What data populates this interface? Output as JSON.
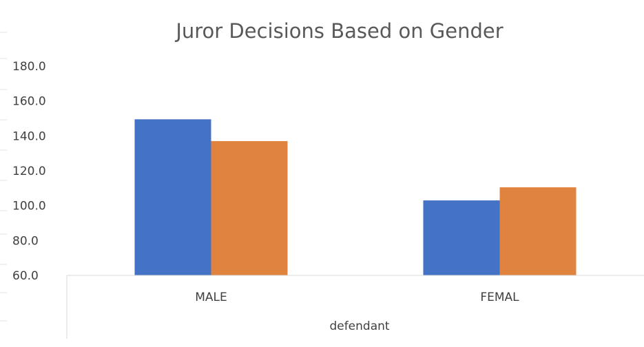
{
  "chart_data": {
    "type": "bar",
    "title": "Juror Decisions Based on Gender",
    "xlabel": "defendant",
    "ylabel": "",
    "categories": [
      "MALE",
      "FEMAL"
    ],
    "series": [
      {
        "values": [
          149.5,
          103.0
        ],
        "color": "#4472C4"
      },
      {
        "values": [
          137.0,
          110.5
        ],
        "color": "#E0833F"
      }
    ],
    "ylim": [
      60,
      180
    ],
    "yticks": [
      "60.0",
      "80.0",
      "100.0",
      "120.0",
      "140.0",
      "160.0",
      "180.0"
    ],
    "grid": false,
    "legend": "none"
  }
}
